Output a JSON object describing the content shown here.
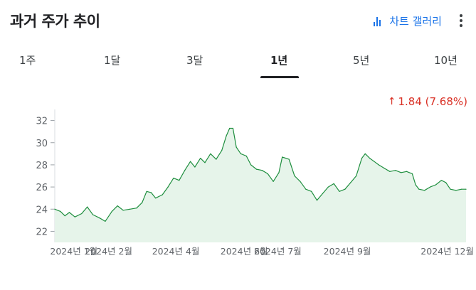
{
  "header": {
    "title": "과거 주가 추이",
    "gallery_label": "차트 갤러리",
    "gallery_icon": "bar-chart-icon",
    "more_icon": "more-vert-icon",
    "accent_color": "#1a73e8"
  },
  "tabs": [
    {
      "label": "1주",
      "active": false
    },
    {
      "label": "1달",
      "active": false
    },
    {
      "label": "3달",
      "active": false
    },
    {
      "label": "1년",
      "active": true
    },
    {
      "label": "5년",
      "active": false
    },
    {
      "label": "10년",
      "active": false
    }
  ],
  "change": {
    "arrow": "↑",
    "text": "1.84 (7.68%)",
    "color": "#d93025"
  },
  "chart_data": {
    "type": "area",
    "ylim": [
      21,
      33
    ],
    "yticks": [
      22,
      24,
      26,
      28,
      30,
      32
    ],
    "xticks": [
      {
        "label": "2024년 1월",
        "date": "2024-01-01"
      },
      {
        "label": "2024년 2월",
        "date": "2024-02-01"
      },
      {
        "label": "2024년 4월",
        "date": "2024-04-01"
      },
      {
        "label": "2024년 6월",
        "date": "2024-06-01"
      },
      {
        "label": "2024년 7월",
        "date": "2024-07-01"
      },
      {
        "label": "2024년 9월",
        "date": "2024-09-01"
      },
      {
        "label": "2024년 12월",
        "date": "2024-12-01"
      }
    ],
    "line_color": "#1e8e3e",
    "fill_color": "#e6f4ea",
    "series": [
      {
        "points": [
          [
            "2023-12-15",
            24.0
          ],
          [
            "2023-12-20",
            23.8
          ],
          [
            "2023-12-24",
            23.4
          ],
          [
            "2023-12-28",
            23.7
          ],
          [
            "2024-01-02",
            23.3
          ],
          [
            "2024-01-08",
            23.6
          ],
          [
            "2024-01-13",
            24.2
          ],
          [
            "2024-01-18",
            23.5
          ],
          [
            "2024-01-24",
            23.2
          ],
          [
            "2024-01-29",
            22.9
          ],
          [
            "2024-02-04",
            23.8
          ],
          [
            "2024-02-09",
            24.3
          ],
          [
            "2024-02-14",
            23.9
          ],
          [
            "2024-02-20",
            24.0
          ],
          [
            "2024-02-26",
            24.1
          ],
          [
            "2024-03-02",
            24.6
          ],
          [
            "2024-03-06",
            25.6
          ],
          [
            "2024-03-10",
            25.5
          ],
          [
            "2024-03-14",
            25.0
          ],
          [
            "2024-03-20",
            25.3
          ],
          [
            "2024-03-25",
            26.0
          ],
          [
            "2024-03-30",
            26.8
          ],
          [
            "2024-04-04",
            26.6
          ],
          [
            "2024-04-09",
            27.5
          ],
          [
            "2024-04-14",
            28.3
          ],
          [
            "2024-04-18",
            27.8
          ],
          [
            "2024-04-23",
            28.6
          ],
          [
            "2024-04-27",
            28.2
          ],
          [
            "2024-05-02",
            29.0
          ],
          [
            "2024-05-07",
            28.5
          ],
          [
            "2024-05-12",
            29.3
          ],
          [
            "2024-05-16",
            30.6
          ],
          [
            "2024-05-19",
            31.3
          ],
          [
            "2024-05-22",
            31.3
          ],
          [
            "2024-05-25",
            29.6
          ],
          [
            "2024-05-29",
            29.0
          ],
          [
            "2024-06-03",
            28.8
          ],
          [
            "2024-06-07",
            28.0
          ],
          [
            "2024-06-12",
            27.6
          ],
          [
            "2024-06-17",
            27.5
          ],
          [
            "2024-06-22",
            27.2
          ],
          [
            "2024-06-27",
            26.5
          ],
          [
            "2024-07-02",
            27.3
          ],
          [
            "2024-07-05",
            28.7
          ],
          [
            "2024-07-11",
            28.5
          ],
          [
            "2024-07-16",
            27.0
          ],
          [
            "2024-07-21",
            26.5
          ],
          [
            "2024-07-26",
            25.8
          ],
          [
            "2024-07-31",
            25.6
          ],
          [
            "2024-08-05",
            24.8
          ],
          [
            "2024-08-10",
            25.4
          ],
          [
            "2024-08-15",
            26.0
          ],
          [
            "2024-08-20",
            26.3
          ],
          [
            "2024-08-25",
            25.6
          ],
          [
            "2024-08-30",
            25.8
          ],
          [
            "2024-09-04",
            26.4
          ],
          [
            "2024-09-09",
            27.0
          ],
          [
            "2024-09-14",
            28.6
          ],
          [
            "2024-09-17",
            29.0
          ],
          [
            "2024-09-21",
            28.6
          ],
          [
            "2024-09-25",
            28.3
          ],
          [
            "2024-09-29",
            28.0
          ],
          [
            "2024-10-04",
            27.7
          ],
          [
            "2024-10-09",
            27.4
          ],
          [
            "2024-10-14",
            27.5
          ],
          [
            "2024-10-19",
            27.3
          ],
          [
            "2024-10-24",
            27.4
          ],
          [
            "2024-10-29",
            27.2
          ],
          [
            "2024-11-01",
            26.2
          ],
          [
            "2024-11-04",
            25.8
          ],
          [
            "2024-11-09",
            25.7
          ],
          [
            "2024-11-14",
            26.0
          ],
          [
            "2024-11-19",
            26.2
          ],
          [
            "2024-11-24",
            26.6
          ],
          [
            "2024-11-28",
            26.4
          ],
          [
            "2024-12-02",
            25.8
          ],
          [
            "2024-12-07",
            25.7
          ],
          [
            "2024-12-12",
            25.8
          ],
          [
            "2024-12-16",
            25.8
          ]
        ]
      }
    ]
  }
}
